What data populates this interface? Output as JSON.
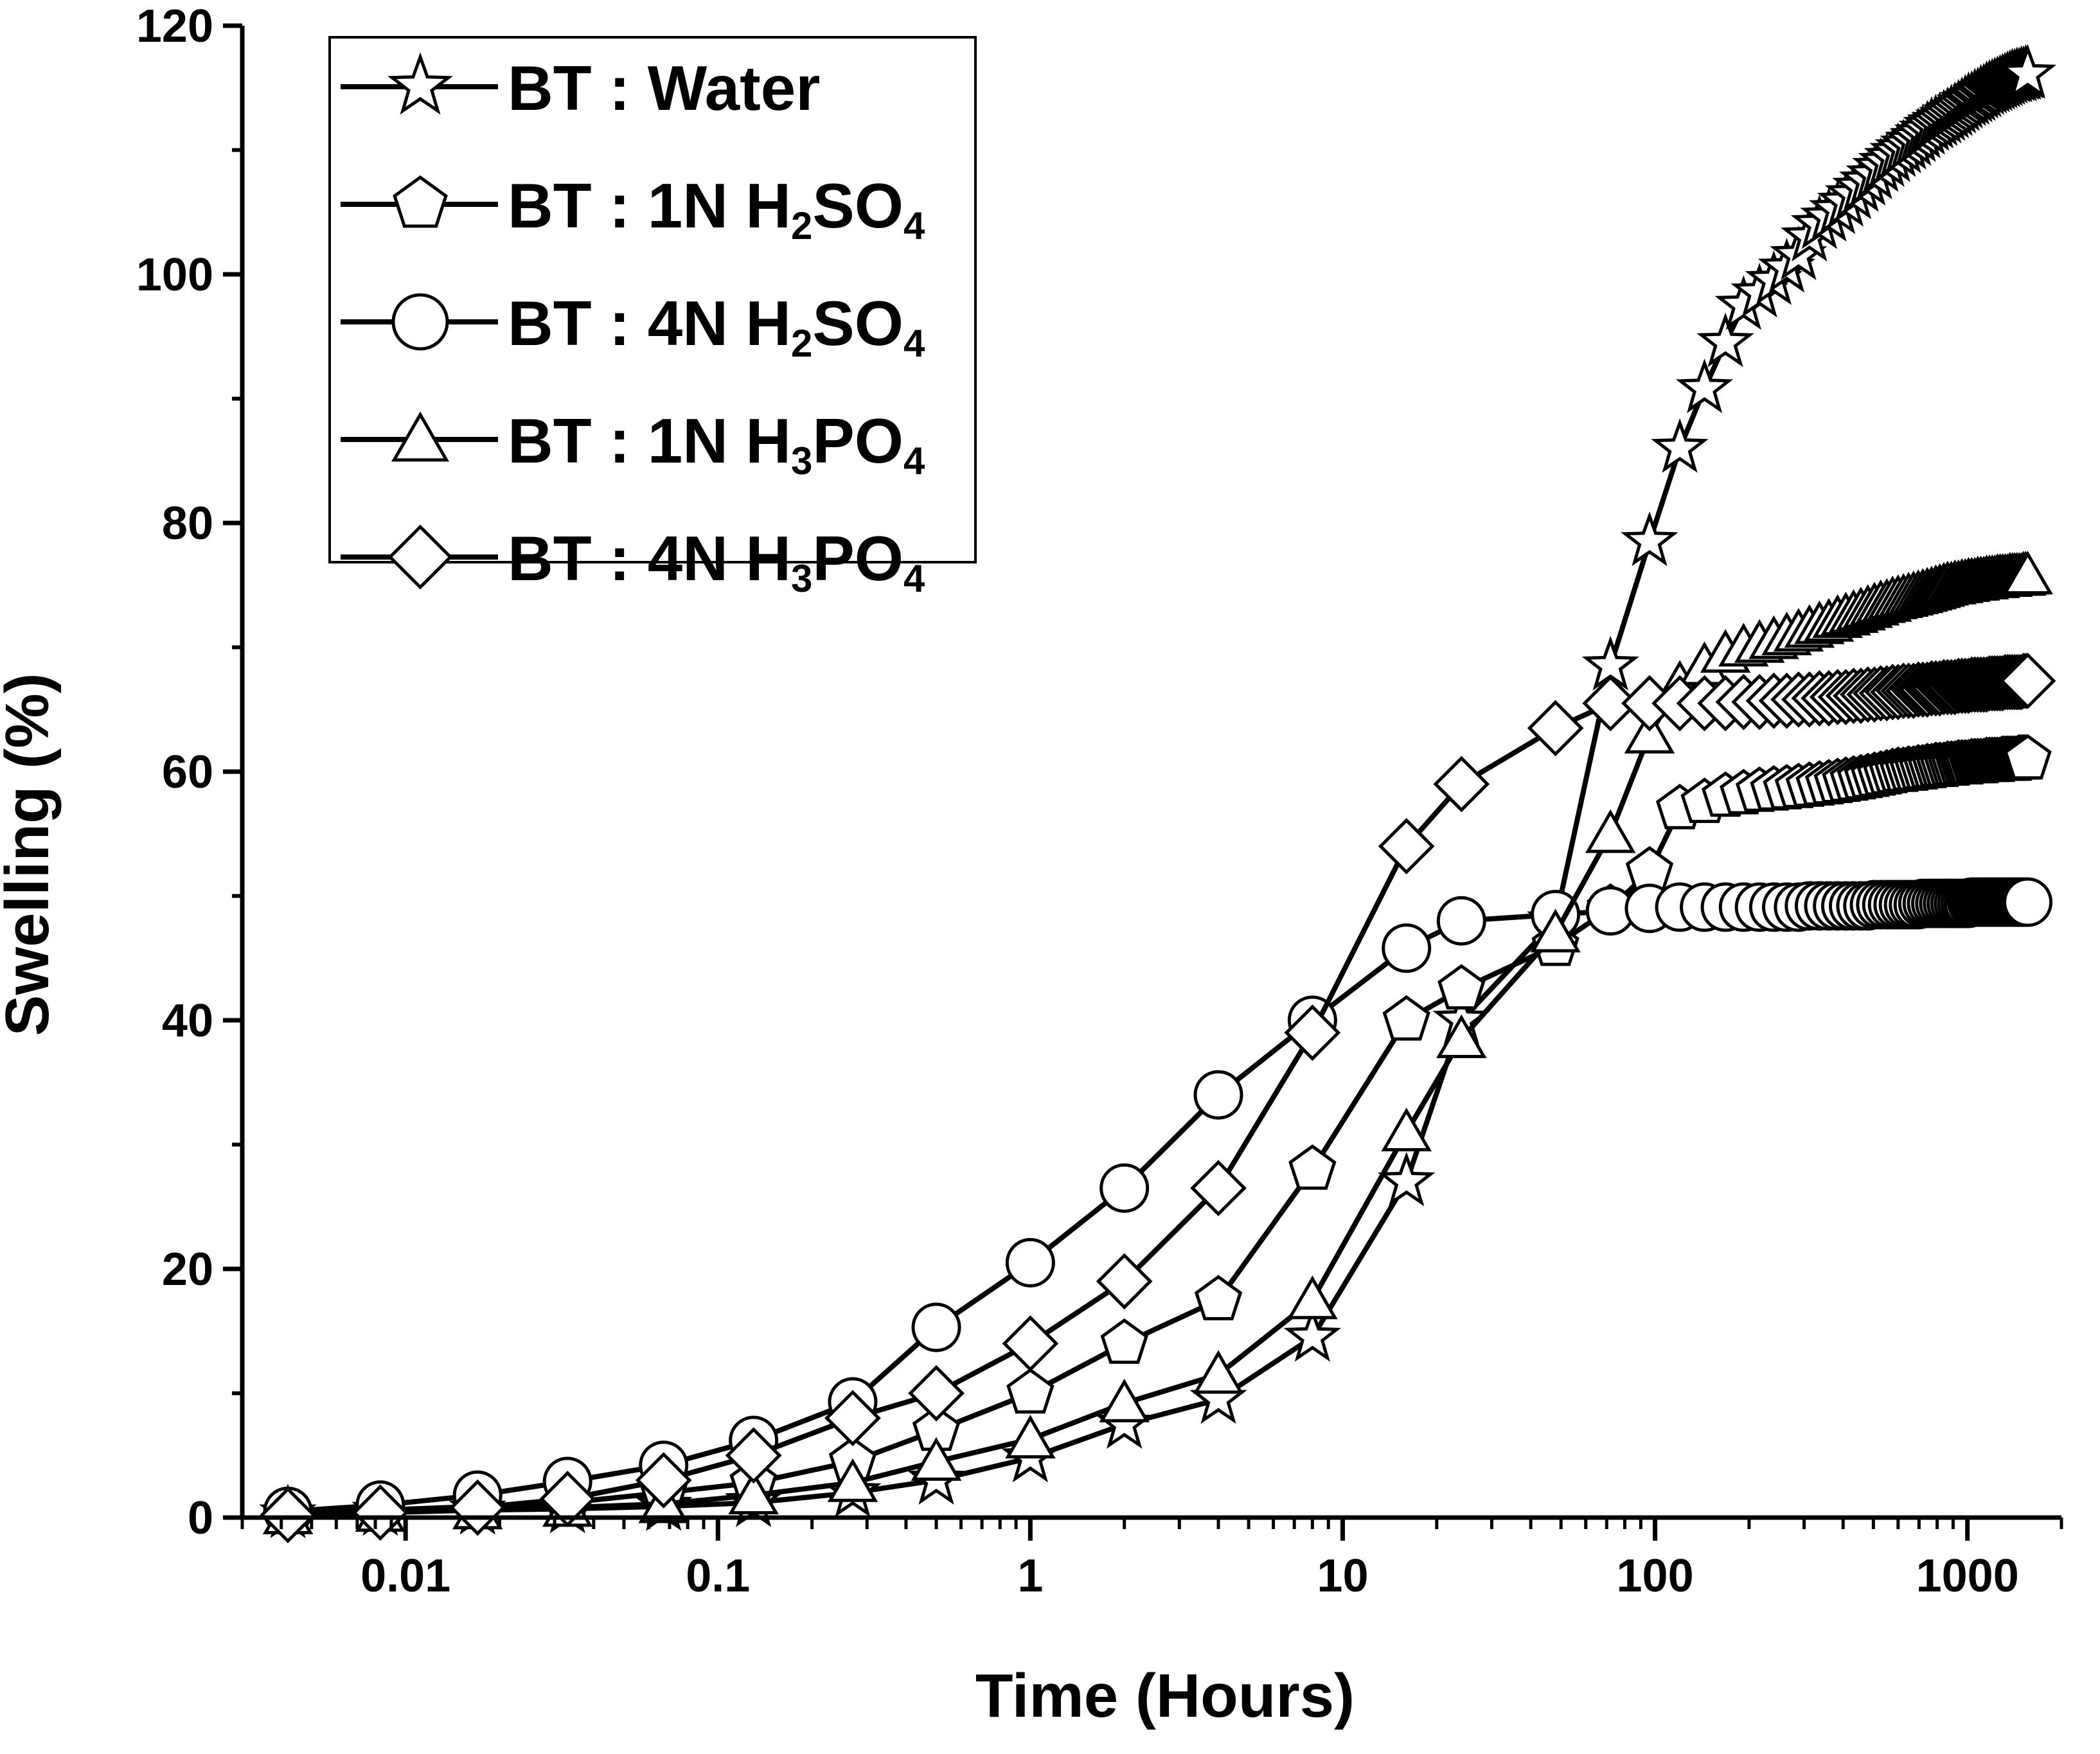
{
  "chart_data": {
    "type": "line",
    "title": "",
    "xlabel": "Time (Hours)",
    "ylabel": "Swelling (%)",
    "xscale": "log",
    "xlim": [
      0.003,
      2000
    ],
    "ylim": [
      0,
      120
    ],
    "x_ticks": [
      0.01,
      0.1,
      1,
      10,
      100,
      1000
    ],
    "x_tick_labels": [
      "0.01",
      "0.1",
      "1",
      "10",
      "100",
      "1000"
    ],
    "y_ticks": [
      0,
      20,
      40,
      60,
      80,
      100,
      120
    ],
    "y_tick_labels": [
      "0",
      "20",
      "40",
      "60",
      "80",
      "100",
      "120"
    ],
    "grid": false,
    "legend_position": "top-left",
    "series": [
      {
        "name": "BT : Water",
        "legend": {
          "main": "BT : Water",
          "parts": [
            {
              "t": "BT : Water"
            }
          ]
        },
        "marker": "star",
        "x": [
          0.0042,
          0.0083,
          0.017,
          0.033,
          0.067,
          0.13,
          0.27,
          0.5,
          1,
          2,
          4,
          8,
          16,
          24,
          48,
          72,
          96,
          120,
          144,
          168,
          192,
          216,
          240,
          264,
          288,
          312,
          336,
          360,
          384,
          408,
          432,
          456,
          480,
          504,
          528,
          552,
          576,
          600,
          624,
          648,
          672,
          696,
          720,
          744,
          768,
          792,
          816,
          840,
          864,
          888,
          912,
          936,
          960,
          984,
          1008,
          1032,
          1056,
          1080,
          1104,
          1128,
          1152,
          1176,
          1200,
          1224,
          1248,
          1272,
          1296,
          1320,
          1344,
          1368,
          1392,
          1416,
          1440,
          1464,
          1488,
          1512,
          1536,
          1560
        ],
        "y": [
          0.3,
          0.5,
          0.6,
          0.7,
          0.9,
          1.2,
          2.0,
          3.0,
          4.8,
          7.5,
          9.5,
          14.5,
          27,
          40,
          48,
          68.5,
          78.5,
          86,
          90.8,
          94.5,
          97.5,
          98.5,
          99.5,
          100.5,
          101.5,
          103,
          104,
          104.6,
          105.2,
          105.8,
          106.4,
          107,
          107.5,
          108,
          108.6,
          109,
          109.4,
          109.8,
          110.1,
          110.4,
          110.7,
          111,
          111.3,
          111.6,
          111.9,
          112.1,
          112.3,
          112.5,
          112.7,
          112.9,
          113.1,
          113.3,
          113.5,
          113.7,
          113.9,
          114,
          114.2,
          114.3,
          114.5,
          114.6,
          114.8,
          114.9,
          115,
          115.1,
          115.2,
          115.3,
          115.4,
          115.5,
          115.6,
          115.7,
          115.8,
          115.8,
          115.9,
          115.9,
          116,
          116,
          116.1,
          116.1
        ]
      },
      {
        "name": "BT : 1N H2SO4",
        "legend": {
          "main": "BT : 1N H2SO4",
          "parts": [
            {
              "t": "BT : 1N H"
            },
            {
              "t": "2",
              "sub": true
            },
            {
              "t": "SO"
            },
            {
              "t": "4",
              "sub": true
            }
          ]
        },
        "marker": "pentagon",
        "x": [
          0.0042,
          0.0083,
          0.017,
          0.033,
          0.067,
          0.13,
          0.27,
          0.5,
          1,
          2,
          4,
          8,
          16,
          24,
          48,
          72,
          96,
          120,
          144,
          168,
          192,
          216,
          240,
          264,
          288,
          312,
          336,
          360,
          384,
          408,
          432,
          456,
          480,
          504,
          528,
          552,
          576,
          600,
          624,
          648,
          672,
          696,
          720,
          744,
          768,
          792,
          816,
          840,
          864,
          888,
          912,
          936,
          960,
          984,
          1008,
          1032,
          1056,
          1080,
          1104,
          1128,
          1152,
          1176,
          1200,
          1224,
          1248,
          1272,
          1296,
          1320,
          1344,
          1368,
          1392,
          1416,
          1440,
          1464,
          1488,
          1512,
          1536,
          1560
        ],
        "y": [
          0.3,
          0.6,
          0.9,
          1.2,
          2.0,
          2.8,
          4.5,
          7.0,
          10,
          14,
          17.5,
          28,
          40,
          42.5,
          46,
          49,
          52,
          57,
          57.5,
          58,
          58.2,
          58.4,
          58.5,
          58.6,
          58.7,
          58.8,
          58.9,
          59,
          59.1,
          59.2,
          59.3,
          59.4,
          59.5,
          59.6,
          59.7,
          59.8,
          59.9,
          60,
          60,
          60.1,
          60.1,
          60.2,
          60.2,
          60.3,
          60.3,
          60.4,
          60.4,
          60.4,
          60.5,
          60.5,
          60.5,
          60.6,
          60.6,
          60.6,
          60.6,
          60.7,
          60.7,
          60.7,
          60.7,
          60.7,
          60.8,
          60.8,
          60.8,
          60.8,
          60.8,
          60.8,
          60.9,
          60.9,
          60.9,
          60.9,
          60.9,
          60.9,
          60.9,
          61,
          61,
          61,
          61,
          61
        ]
      },
      {
        "name": "BT : 4N H2SO4",
        "legend": {
          "main": "BT : 4N H2SO4",
          "parts": [
            {
              "t": "BT : 4N H"
            },
            {
              "t": "2",
              "sub": true
            },
            {
              "t": "SO"
            },
            {
              "t": "4",
              "sub": true
            }
          ]
        },
        "marker": "circle",
        "x": [
          0.0042,
          0.0083,
          0.017,
          0.033,
          0.067,
          0.13,
          0.27,
          0.5,
          1,
          2,
          4,
          8,
          16,
          24,
          48,
          72,
          96,
          120,
          144,
          168,
          192,
          216,
          240,
          264,
          288,
          312,
          336,
          360,
          384,
          408,
          432,
          456,
          480,
          504,
          528,
          552,
          576,
          600,
          624,
          648,
          672,
          696,
          720,
          744,
          768,
          792,
          816,
          840,
          864,
          888,
          912,
          936,
          960,
          984,
          1008,
          1032,
          1056,
          1080,
          1104,
          1128,
          1152,
          1176,
          1200,
          1224,
          1248,
          1272,
          1296,
          1320,
          1344,
          1368,
          1392,
          1416,
          1440,
          1464,
          1488,
          1512,
          1536,
          1560
        ],
        "y": [
          0.5,
          1.0,
          1.8,
          2.9,
          4.2,
          6.2,
          9.3,
          15.3,
          20.5,
          26.5,
          34,
          40,
          45.8,
          48,
          48.5,
          48.8,
          49,
          49.1,
          49.1,
          49.1,
          49.1,
          49.1,
          49.1,
          49.1,
          49.1,
          49.2,
          49.2,
          49.2,
          49.2,
          49.2,
          49.2,
          49.2,
          49.2,
          49.3,
          49.3,
          49.3,
          49.3,
          49.3,
          49.3,
          49.3,
          49.3,
          49.3,
          49.4,
          49.4,
          49.4,
          49.4,
          49.4,
          49.4,
          49.4,
          49.4,
          49.4,
          49.4,
          49.4,
          49.4,
          49.4,
          49.5,
          49.5,
          49.5,
          49.5,
          49.5,
          49.5,
          49.5,
          49.5,
          49.5,
          49.5,
          49.5,
          49.5,
          49.5,
          49.5,
          49.5,
          49.5,
          49.5,
          49.5,
          49.5,
          49.5,
          49.5,
          49.5,
          49.5
        ]
      },
      {
        "name": "BT : 1N H3PO4",
        "legend": {
          "main": "BT : 1N H3PO4",
          "parts": [
            {
              "t": "BT : 1N H"
            },
            {
              "t": "3",
              "sub": true
            },
            {
              "t": "PO"
            },
            {
              "t": "4",
              "sub": true
            }
          ]
        },
        "marker": "triangle",
        "x": [
          0.0042,
          0.0083,
          0.017,
          0.033,
          0.067,
          0.13,
          0.27,
          0.5,
          1,
          2,
          4,
          8,
          16,
          24,
          48,
          72,
          96,
          120,
          144,
          168,
          192,
          216,
          240,
          264,
          288,
          312,
          336,
          360,
          384,
          408,
          432,
          456,
          480,
          504,
          528,
          552,
          576,
          600,
          624,
          648,
          672,
          696,
          720,
          744,
          768,
          792,
          816,
          840,
          864,
          888,
          912,
          936,
          960,
          984,
          1008,
          1032,
          1056,
          1080,
          1104,
          1128,
          1152,
          1176,
          1200,
          1224,
          1248,
          1272,
          1296,
          1320,
          1344,
          1368,
          1392,
          1416,
          1440,
          1464,
          1488,
          1512,
          1536,
          1560
        ],
        "y": [
          0.2,
          0.4,
          0.6,
          0.8,
          1.1,
          1.8,
          2.8,
          4.5,
          6.3,
          9.2,
          11.5,
          17.5,
          31,
          38.5,
          47,
          55,
          63,
          67,
          68.5,
          69.5,
          70,
          70.3,
          70.6,
          70.9,
          71.2,
          71.5,
          71.8,
          72,
          72.3,
          72.5,
          72.7,
          72.9,
          73.1,
          73.3,
          73.5,
          73.6,
          73.8,
          73.9,
          74,
          74.1,
          74.2,
          74.3,
          74.4,
          74.5,
          74.6,
          74.7,
          74.8,
          74.9,
          75,
          75,
          75.1,
          75.1,
          75.2,
          75.2,
          75.3,
          75.3,
          75.3,
          75.4,
          75.4,
          75.4,
          75.5,
          75.5,
          75.5,
          75.5,
          75.6,
          75.6,
          75.6,
          75.6,
          75.6,
          75.7,
          75.7,
          75.7,
          75.7,
          75.7,
          75.7,
          75.8,
          75.8,
          75.8
        ]
      },
      {
        "name": "BT : 4N H3PO4",
        "legend": {
          "main": "BT : 4N H3PO4",
          "parts": [
            {
              "t": "BT : 4N H"
            },
            {
              "t": "3",
              "sub": true
            },
            {
              "t": "PO"
            },
            {
              "t": "4",
              "sub": true
            }
          ]
        },
        "marker": "diamond",
        "x": [
          0.0042,
          0.0083,
          0.017,
          0.033,
          0.067,
          0.13,
          0.27,
          0.5,
          1,
          2,
          4,
          8,
          16,
          24,
          48,
          72,
          96,
          120,
          144,
          168,
          192,
          216,
          240,
          264,
          288,
          312,
          336,
          360,
          384,
          408,
          432,
          456,
          480,
          504,
          528,
          552,
          576,
          600,
          624,
          648,
          672,
          696,
          720,
          744,
          768,
          792,
          816,
          840,
          864,
          888,
          912,
          936,
          960,
          984,
          1008,
          1032,
          1056,
          1080,
          1104,
          1128,
          1152,
          1176,
          1200,
          1224,
          1248,
          1272,
          1296,
          1320,
          1344,
          1368,
          1392,
          1416,
          1440,
          1464,
          1488,
          1512,
          1536,
          1560
        ],
        "y": [
          0.2,
          0.4,
          0.8,
          1.5,
          3.0,
          5.0,
          8.0,
          10,
          14,
          19,
          26.5,
          39,
          54,
          59,
          63.5,
          65.5,
          65.5,
          65.5,
          65.5,
          65.5,
          65.6,
          65.6,
          65.7,
          65.7,
          65.8,
          65.8,
          65.9,
          65.9,
          66,
          66,
          66.1,
          66.1,
          66.2,
          66.2,
          66.3,
          66.3,
          66.4,
          66.4,
          66.5,
          66.5,
          66.5,
          66.6,
          66.6,
          66.6,
          66.7,
          66.7,
          66.7,
          66.8,
          66.8,
          66.8,
          66.8,
          66.9,
          66.9,
          66.9,
          66.9,
          67,
          67,
          67,
          67,
          67,
          67,
          67.1,
          67.1,
          67.1,
          67.1,
          67.1,
          67.1,
          67.2,
          67.2,
          67.2,
          67.2,
          67.2,
          67.2,
          67.2,
          67.2,
          67.3,
          67.3,
          67.3
        ]
      }
    ]
  }
}
